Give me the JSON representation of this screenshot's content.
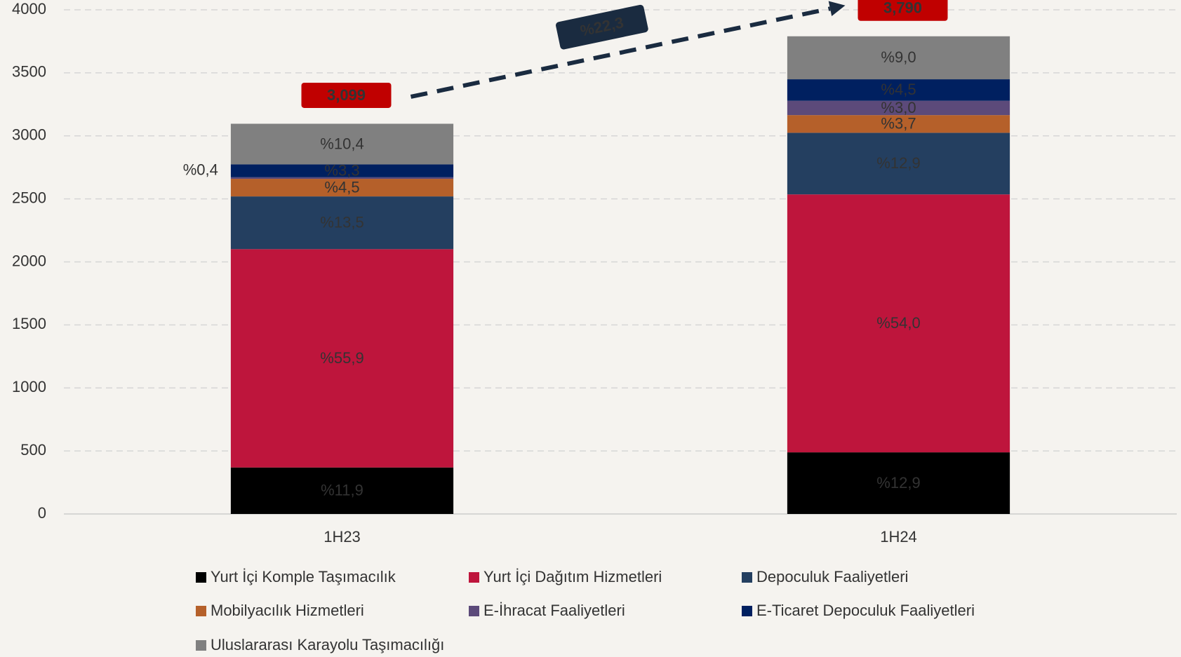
{
  "chart_data": {
    "type": "stacked_bar",
    "categories": [
      "1H23",
      "1H24"
    ],
    "ylim": [
      0,
      4000
    ],
    "yticks": [
      0,
      500,
      1000,
      1500,
      2000,
      2500,
      3000,
      3500,
      4000
    ],
    "grid": true,
    "legend": "bottom",
    "series": [
      {
        "name": "Yurt İçi Komple Taşımacılık",
        "color": "#000000",
        "values": [
          368.8,
          488.9
        ],
        "value_labels": [
          "%11,9",
          "%12,9"
        ]
      },
      {
        "name": "Yurt İçi Dağıtım Hizmetleri",
        "color": "#be153c",
        "values": [
          1732.3,
          2046.6
        ],
        "value_labels": [
          "%55,9",
          "%54,0"
        ]
      },
      {
        "name": "Depoculuk Faaliyetleri",
        "color": "#243f60",
        "values": [
          418.4,
          488.9
        ],
        "value_labels": [
          "%13,5",
          "%12,9"
        ]
      },
      {
        "name": "Mobilyacılık Hizmetleri",
        "color": "#b5602a",
        "values": [
          139.5,
          140.2
        ],
        "value_labels": [
          "%4,5",
          "%3,7"
        ]
      },
      {
        "name": "E-İhracat Faaliyetleri",
        "color": "#5c4a7a",
        "values": [
          12.4,
          113.7
        ],
        "value_labels": [
          "%0,4",
          "%3,0"
        ]
      },
      {
        "name": "E-Ticaret Depoculuk Faaliyetleri",
        "color": "#002060",
        "values": [
          102.3,
          170.6
        ],
        "value_labels": [
          "%3,3",
          "%4,5"
        ]
      },
      {
        "name": "Uluslararası Karayolu Taşımacılığı",
        "color": "#808080",
        "values": [
          322.3,
          341.1
        ],
        "value_labels": [
          "%10,4",
          "%9,0"
        ]
      }
    ],
    "totals": [
      3099,
      3790
    ],
    "total_labels": [
      "3,099",
      "3,790"
    ],
    "total_color": "#c00000",
    "annotation": "%22,3"
  }
}
